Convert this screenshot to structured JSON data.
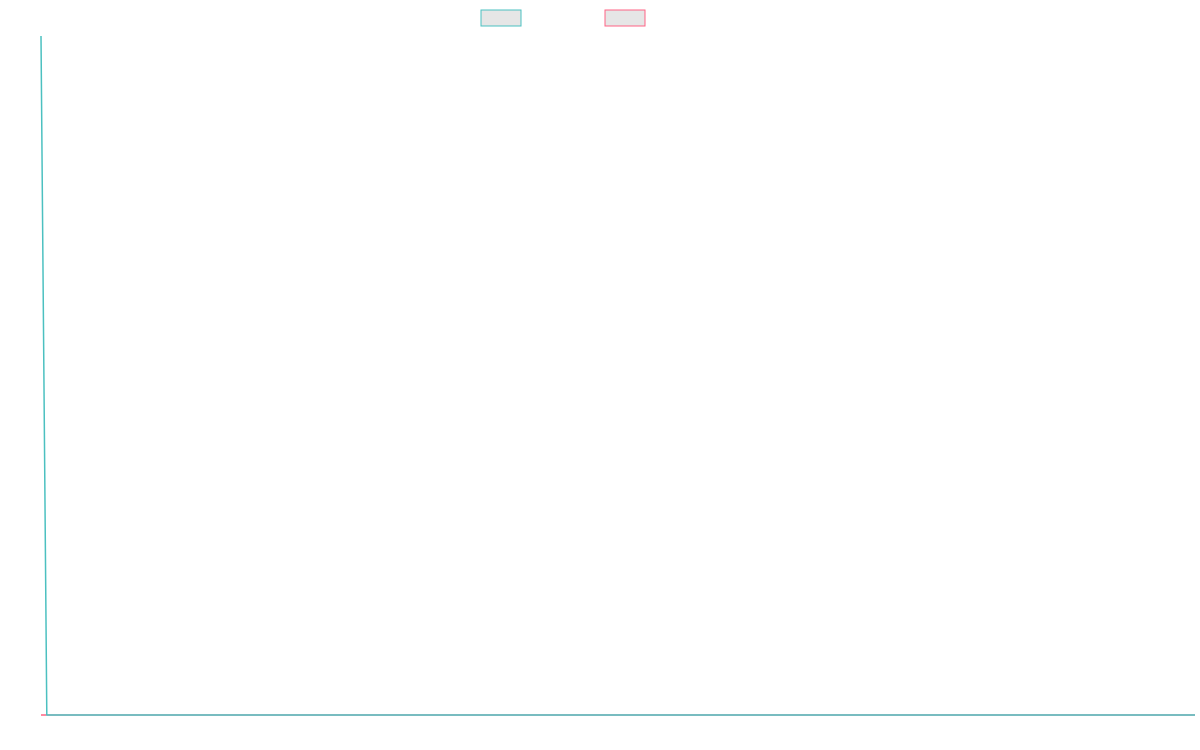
{
  "chart_data": {
    "type": "line",
    "title": "",
    "xlabel": "",
    "ylabel": "",
    "grid": false,
    "legend_placement": "top-center",
    "x": [
      0,
      1,
      2,
      3,
      4,
      5,
      6,
      7,
      8,
      9,
      10,
      11,
      12,
      13,
      14,
      15,
      16,
      17,
      18,
      19,
      20,
      21,
      22,
      23,
      24,
      25,
      26,
      27,
      28,
      29,
      30,
      31,
      32,
      33,
      34,
      35,
      36,
      37,
      38,
      39,
      40,
      41,
      42,
      43,
      44,
      45,
      46,
      47,
      48,
      49,
      50,
      51,
      52,
      53,
      54,
      55,
      56,
      57,
      58,
      59,
      60,
      61,
      62,
      63,
      64,
      65,
      66,
      67,
      68,
      69,
      70,
      71,
      72,
      73,
      74,
      75,
      76,
      77,
      78,
      79,
      80,
      81,
      82,
      83,
      84,
      85,
      86,
      87,
      88,
      89,
      90,
      91,
      92,
      93,
      94,
      95,
      96,
      97,
      98,
      99,
      100,
      101,
      102,
      103,
      104,
      105,
      106,
      107,
      108,
      109,
      110,
      111,
      112,
      113,
      114,
      115,
      116,
      117,
      118,
      119,
      120,
      121,
      122,
      123,
      124,
      125,
      126,
      127,
      128,
      129,
      130,
      131,
      132,
      133,
      134,
      135,
      136,
      137,
      138,
      139,
      140,
      141,
      142,
      143,
      144,
      145,
      146,
      147,
      148,
      149,
      150,
      151,
      152,
      153,
      154,
      155,
      156,
      157,
      158,
      159,
      160,
      161,
      162,
      163,
      164,
      165,
      166,
      167,
      168,
      169,
      170,
      171,
      172,
      173,
      174,
      175,
      176,
      177,
      178,
      179,
      180,
      181,
      182,
      183,
      184,
      185,
      186,
      187,
      188,
      189,
      190,
      191,
      192,
      193,
      194,
      195,
      196,
      197,
      198,
      199
    ],
    "xlim": [
      0,
      199
    ],
    "ylim": [
      0,
      100
    ],
    "series": [
      {
        "label": "",
        "color": "#4bc0c0",
        "values": [
          100,
          0,
          0,
          0,
          0,
          0,
          0,
          0,
          0,
          0,
          0,
          0,
          0,
          0,
          0,
          0,
          0,
          0,
          0,
          0,
          0,
          0,
          0,
          0,
          0,
          0,
          0,
          0,
          0,
          0,
          0,
          0,
          0,
          0,
          0,
          0,
          0,
          0,
          0,
          0,
          0,
          0,
          0,
          0,
          0,
          0,
          0,
          0,
          0,
          0,
          0,
          0,
          0,
          0,
          0,
          0,
          0,
          0,
          0,
          0,
          0,
          0,
          0,
          0,
          0,
          0,
          0,
          0,
          0,
          0,
          0,
          0,
          0,
          0,
          0,
          0,
          0,
          0,
          0,
          0,
          0,
          0,
          0,
          0,
          0,
          0,
          0,
          0,
          0,
          0,
          0,
          0,
          0,
          0,
          0,
          0,
          0,
          0,
          0,
          0,
          0,
          0,
          0,
          0,
          0,
          0,
          0,
          0,
          0,
          0,
          0,
          0,
          0,
          0,
          0,
          0,
          0,
          0,
          0,
          0,
          0,
          0,
          0,
          0,
          0,
          0,
          0,
          0,
          0,
          0,
          0,
          0,
          0,
          0,
          0,
          0,
          0,
          0,
          0,
          0,
          0,
          0,
          0,
          0,
          0,
          0,
          0,
          0,
          0,
          0,
          0,
          0,
          0,
          0,
          0,
          0,
          0,
          0,
          0,
          0,
          0,
          0,
          0,
          0,
          0,
          0,
          0,
          0,
          0,
          0,
          0,
          0,
          0,
          0,
          0,
          0,
          0,
          0,
          0,
          0,
          0,
          0,
          0,
          0,
          0,
          0,
          0,
          0,
          0,
          0,
          0,
          0,
          0,
          0,
          0,
          0,
          0,
          0,
          0,
          0
        ]
      },
      {
        "label": "",
        "color": "#ff6384",
        "values": [
          0,
          0,
          0,
          0,
          0,
          0,
          0,
          0,
          0,
          0,
          0,
          0,
          0,
          0,
          0,
          0,
          0,
          0,
          0,
          0,
          0,
          0,
          0,
          0,
          0,
          0,
          0,
          0,
          0,
          0,
          0,
          0,
          0,
          0,
          0,
          0,
          0,
          0,
          0,
          0,
          0,
          0,
          0,
          0,
          0,
          0,
          0,
          0,
          0,
          0,
          0,
          0,
          0,
          0,
          0,
          0,
          0,
          0,
          0,
          0,
          0,
          0,
          0,
          0,
          0,
          0,
          0,
          0,
          0,
          0,
          0,
          0,
          0,
          0,
          0,
          0,
          0,
          0,
          0,
          0,
          0,
          0,
          0,
          0,
          0,
          0,
          0,
          0,
          0,
          0,
          0,
          0,
          0,
          0,
          0,
          0,
          0,
          0,
          0,
          0,
          0,
          0,
          0,
          0,
          0,
          0,
          0,
          0,
          0,
          0,
          0,
          0,
          0,
          0,
          0,
          0,
          0,
          0,
          0,
          0,
          0,
          0,
          0,
          0,
          0,
          0,
          0,
          0,
          0,
          0,
          0,
          0,
          0,
          0,
          0,
          0,
          0,
          0,
          0,
          0,
          0,
          0,
          0,
          0,
          0,
          0,
          0,
          0,
          0,
          0,
          0,
          0,
          0,
          0,
          0,
          0,
          0,
          0,
          0,
          0,
          0,
          0,
          0,
          0,
          0,
          0,
          0,
          0,
          0,
          0,
          0,
          0,
          0,
          0,
          0,
          0,
          0,
          0,
          0,
          0,
          0,
          0,
          0,
          0,
          0,
          0,
          0,
          0,
          0,
          0,
          0,
          0,
          0,
          0,
          0,
          0,
          0,
          0,
          0,
          0
        ]
      }
    ]
  }
}
